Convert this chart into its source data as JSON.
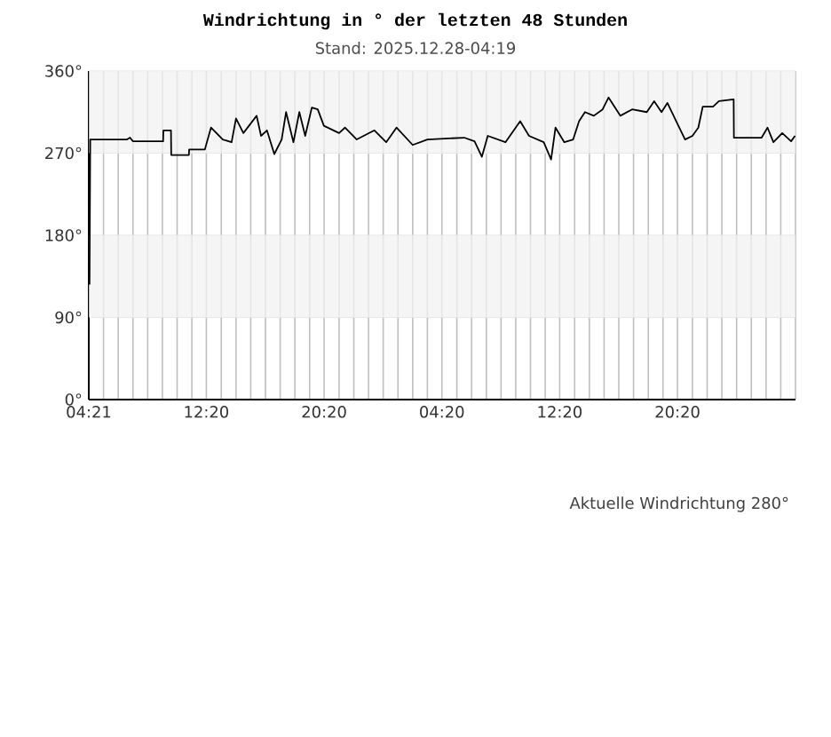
{
  "chart_data": {
    "type": "line",
    "title": "Windrichtung in ° der letzten 48 Stunden",
    "subtitle": "Stand: 2025.12.28-04:19",
    "annotations": [
      "Aktuelle Windrichtung 280°"
    ],
    "xlim": [
      "2025-12-26T04:21",
      "2025-12-28T04:21"
    ],
    "ylim": [
      0,
      360
    ],
    "xticks": [
      {
        "value": "2025-12-26T04:21",
        "label": "04:21"
      },
      {
        "value": "2025-12-26T05:21",
        "label": null
      },
      {
        "value": "2025-12-26T06:21",
        "label": null
      },
      {
        "value": "2025-12-26T07:21",
        "label": null
      },
      {
        "value": "2025-12-26T08:21",
        "label": null
      },
      {
        "value": "2025-12-26T09:21",
        "label": null
      },
      {
        "value": "2025-12-26T10:21",
        "label": null
      },
      {
        "value": "2025-12-26T11:21",
        "label": null
      },
      {
        "value": "2025-12-26T12:20",
        "label": "12:20"
      },
      {
        "value": "2025-12-26T13:21",
        "label": null
      },
      {
        "value": "2025-12-26T14:21",
        "label": null
      },
      {
        "value": "2025-12-26T15:21",
        "label": null
      },
      {
        "value": "2025-12-26T16:21",
        "label": null
      },
      {
        "value": "2025-12-26T17:21",
        "label": null
      },
      {
        "value": "2025-12-26T18:21",
        "label": null
      },
      {
        "value": "2025-12-26T19:21",
        "label": null
      },
      {
        "value": "2025-12-26T20:20",
        "label": "20:20"
      },
      {
        "value": "2025-12-26T21:21",
        "label": null
      },
      {
        "value": "2025-12-26T22:21",
        "label": null
      },
      {
        "value": "2025-12-26T23:21",
        "label": null
      },
      {
        "value": "2025-12-27T00:21",
        "label": null
      },
      {
        "value": "2025-12-27T01:21",
        "label": null
      },
      {
        "value": "2025-12-27T02:21",
        "label": null
      },
      {
        "value": "2025-12-27T03:21",
        "label": null
      },
      {
        "value": "2025-12-27T04:20",
        "label": "04:20"
      },
      {
        "value": "2025-12-27T05:21",
        "label": null
      },
      {
        "value": "2025-12-27T06:21",
        "label": null
      },
      {
        "value": "2025-12-27T07:21",
        "label": null
      },
      {
        "value": "2025-12-27T08:21",
        "label": null
      },
      {
        "value": "2025-12-27T09:21",
        "label": null
      },
      {
        "value": "2025-12-27T10:21",
        "label": null
      },
      {
        "value": "2025-12-27T11:21",
        "label": null
      },
      {
        "value": "2025-12-27T12:20",
        "label": "12:20"
      },
      {
        "value": "2025-12-27T13:21",
        "label": null
      },
      {
        "value": "2025-12-27T14:21",
        "label": null
      },
      {
        "value": "2025-12-27T15:21",
        "label": null
      },
      {
        "value": "2025-12-27T16:21",
        "label": null
      },
      {
        "value": "2025-12-27T17:21",
        "label": null
      },
      {
        "value": "2025-12-27T18:21",
        "label": null
      },
      {
        "value": "2025-12-27T19:21",
        "label": null
      },
      {
        "value": "2025-12-27T20:20",
        "label": "20:20"
      },
      {
        "value": "2025-12-27T21:21",
        "label": null
      },
      {
        "value": "2025-12-27T22:21",
        "label": null
      },
      {
        "value": "2025-12-27T23:21",
        "label": null
      },
      {
        "value": "2025-12-28T00:21",
        "label": null
      },
      {
        "value": "2025-12-28T01:21",
        "label": null
      },
      {
        "value": "2025-12-28T02:21",
        "label": null
      },
      {
        "value": "2025-12-28T03:21",
        "label": null
      },
      {
        "value": "2025-12-28T04:21",
        "label": null
      }
    ],
    "yticks": [
      {
        "value": 0,
        "label": "0°"
      },
      {
        "value": 90,
        "label": "90°"
      },
      {
        "value": 180,
        "label": "180°"
      },
      {
        "value": 270,
        "label": "270°"
      },
      {
        "value": 360,
        "label": "360°"
      }
    ],
    "grid": true,
    "bands": [
      {
        "axis": "y",
        "from": 270,
        "to": 360,
        "color": "#f2f2f2"
      },
      {
        "axis": "y",
        "from": 90,
        "to": 180,
        "color": "#f2f2f2"
      }
    ],
    "series": [
      {
        "color": "#000000",
        "x": [
          "2025-12-26T04:24",
          "2025-12-26T04:27",
          "2025-12-26T06:57",
          "2025-12-26T07:09",
          "2025-12-26T07:21",
          "2025-12-26T09:24",
          "2025-12-26T09:25",
          "2025-12-26T09:56",
          "2025-12-26T09:57",
          "2025-12-26T11:09",
          "2025-12-26T11:10",
          "2025-12-26T12:14",
          "2025-12-26T12:39",
          "2025-12-26T13:27",
          "2025-12-26T14:03",
          "2025-12-26T14:21",
          "2025-12-26T14:51",
          "2025-12-26T15:45",
          "2025-12-26T16:03",
          "2025-12-26T16:27",
          "2025-12-26T16:57",
          "2025-12-26T17:27",
          "2025-12-26T17:45",
          "2025-12-26T18:15",
          "2025-12-26T18:39",
          "2025-12-26T19:03",
          "2025-12-26T19:30",
          "2025-12-26T19:54",
          "2025-12-26T20:19",
          "2025-12-26T21:21",
          "2025-12-26T21:45",
          "2025-12-26T22:33",
          "2025-12-26T23:45",
          "2025-12-27T00:33",
          "2025-12-27T01:15",
          "2025-12-27T02:21",
          "2025-12-27T03:21",
          "2025-12-27T05:51",
          "2025-12-27T06:33",
          "2025-12-27T07:03",
          "2025-12-27T07:27",
          "2025-12-27T08:39",
          "2025-12-27T09:39",
          "2025-12-27T10:15",
          "2025-12-27T11:15",
          "2025-12-27T11:45",
          "2025-12-27T12:03",
          "2025-12-27T12:39",
          "2025-12-27T13:15",
          "2025-12-27T13:39",
          "2025-12-27T14:03",
          "2025-12-27T14:39",
          "2025-12-27T15:15",
          "2025-12-27T15:39",
          "2025-12-27T16:27",
          "2025-12-27T17:15",
          "2025-12-27T18:15",
          "2025-12-27T18:45",
          "2025-12-27T19:15",
          "2025-12-27T19:39",
          "2025-12-27T20:15",
          "2025-12-27T20:51",
          "2025-12-27T21:21",
          "2025-12-27T21:45",
          "2025-12-27T22:03",
          "2025-12-27T22:45",
          "2025-12-27T23:09",
          "2025-12-28T00:09",
          "2025-12-28T00:10",
          "2025-12-28T02:03",
          "2025-12-28T02:27",
          "2025-12-28T02:51",
          "2025-12-28T03:27",
          "2025-12-28T04:03",
          "2025-12-28T04:19"
        ],
        "values": [
          126,
          285,
          285,
          287,
          283,
          283,
          295,
          295,
          268,
          268,
          274,
          274,
          298,
          285,
          282,
          308,
          292,
          311,
          289,
          295,
          269,
          285,
          315,
          282,
          315,
          289,
          320,
          318,
          300,
          292,
          298,
          285,
          295,
          282,
          298,
          279,
          285,
          287,
          283,
          266,
          289,
          282,
          305,
          289,
          282,
          263,
          298,
          282,
          285,
          305,
          315,
          311,
          318,
          331,
          311,
          318,
          315,
          327,
          315,
          325,
          305,
          285,
          289,
          298,
          321,
          321,
          327,
          329,
          287,
          287,
          298,
          282,
          292,
          283,
          289
        ]
      }
    ]
  }
}
